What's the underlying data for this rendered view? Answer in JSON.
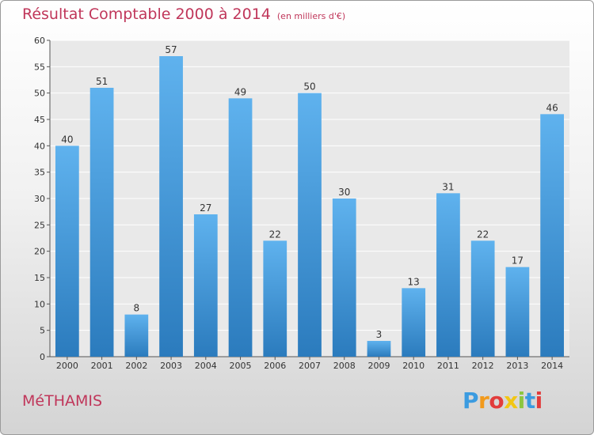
{
  "chart_data": {
    "type": "bar",
    "title": "Résultat Comptable 2000 à 2014",
    "subtitle": "(en milliers d'€)",
    "categories": [
      "2000",
      "2001",
      "2002",
      "2003",
      "2004",
      "2005",
      "2006",
      "2007",
      "2008",
      "2009",
      "2010",
      "2011",
      "2012",
      "2013",
      "2014"
    ],
    "values": [
      40,
      51,
      8,
      57,
      27,
      49,
      22,
      50,
      30,
      3,
      13,
      31,
      22,
      17,
      46
    ],
    "ylim": [
      0,
      60
    ],
    "yticks": [
      "0",
      "5",
      "10",
      "15",
      "20",
      "25",
      "30",
      "35",
      "40",
      "45",
      "50",
      "55",
      "60"
    ],
    "xlabel": "",
    "ylabel": "",
    "grid": true,
    "bar_color_top": "#5fb2ee",
    "bar_color_bottom": "#2b7bbd"
  },
  "place_name": "MéTHAMIS",
  "logo": {
    "letters": [
      "P",
      "r",
      "o",
      "x",
      "i",
      "t",
      "i"
    ],
    "colors": [
      "#3b9be0",
      "#f29a1c",
      "#e23c3c",
      "#f2c614",
      "#8cc63f",
      "#3b9be0",
      "#e23c3c"
    ]
  }
}
